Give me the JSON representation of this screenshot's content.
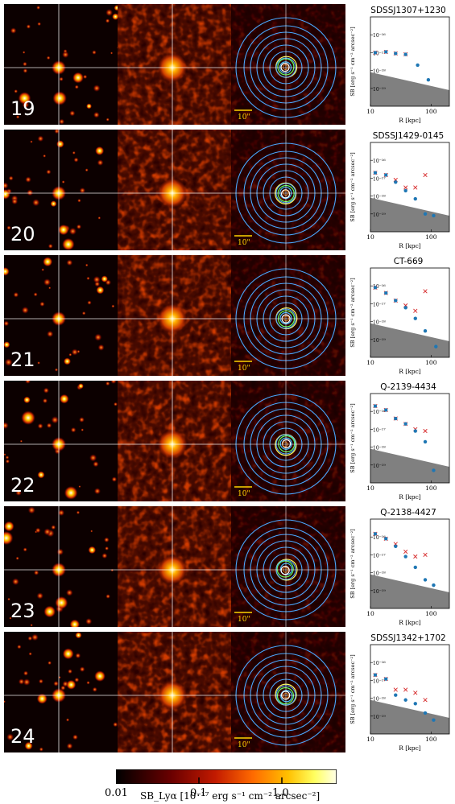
{
  "rows": [
    {
      "number": "19",
      "object": "SDSSJ1307+1230"
    },
    {
      "number": "20",
      "object": "SDSSJ1429-0145"
    },
    {
      "number": "21",
      "object": "CT-669"
    },
    {
      "number": "22",
      "object": "Q-2139-4434"
    },
    {
      "number": "23",
      "object": "Q-2138-4427"
    },
    {
      "number": "24",
      "object": "SDSSJ1342+1702"
    }
  ],
  "scale_bar_label": "10\"",
  "sb_axis": {
    "ylabel": "SB [erg s⁻¹ cm⁻² arcsec⁻²]",
    "xlabel": "R [kpc]",
    "xticks": [
      "10",
      "100"
    ],
    "yticks": [
      "10⁻¹⁶",
      "10⁻¹⁷",
      "10⁻¹⁸",
      "10⁻¹⁹"
    ]
  },
  "colorbar": {
    "ticks": [
      "0.01",
      "0.1",
      "1.0"
    ],
    "label": "SB_Lyα [10⁻¹⁷ erg s⁻¹ cm⁻² arcsec⁻²]"
  },
  "chart_data": [
    {
      "type": "scatter",
      "title": "SDSSJ1307+1230",
      "xlabel": "R [kpc]",
      "ylabel": "SB [erg s⁻¹ cm⁻² arcsec⁻²]",
      "x_scale": "log",
      "y_scale": "log",
      "xlim": [
        10,
        200
      ],
      "ylim": [
        1e-20,
        1e-15
      ],
      "series": [
        {
          "marker": "x",
          "color": "#d62728",
          "x": [
            12,
            18,
            26,
            38
          ],
          "y": [
            1e-17,
            1.1e-17,
            9e-18,
            8e-18
          ]
        },
        {
          "marker": "o",
          "color": "#1f77b4",
          "x": [
            12,
            18,
            26,
            38,
            60,
            90
          ],
          "y": [
            1e-17,
            1.1e-17,
            9e-18,
            8e-18,
            2e-18,
            3e-19
          ]
        }
      ]
    },
    {
      "type": "scatter",
      "title": "SDSSJ1429-0145",
      "xlabel": "R [kpc]",
      "ylabel": "SB [erg s⁻¹ cm⁻² arcsec⁻²]",
      "x_scale": "log",
      "y_scale": "log",
      "xlim": [
        10,
        200
      ],
      "ylim": [
        1e-20,
        1e-15
      ],
      "series": [
        {
          "marker": "x",
          "color": "#d62728",
          "x": [
            12,
            18,
            26,
            38,
            55,
            80
          ],
          "y": [
            2e-17,
            1.5e-17,
            8e-18,
            3e-18,
            3e-18,
            1.5e-17
          ]
        },
        {
          "marker": "o",
          "color": "#1f77b4",
          "x": [
            12,
            18,
            26,
            38,
            55,
            80,
            110
          ],
          "y": [
            2e-17,
            1.5e-17,
            6e-18,
            2e-18,
            7e-19,
            1e-19,
            8e-20
          ]
        }
      ]
    },
    {
      "type": "scatter",
      "title": "CT-669",
      "xlabel": "R [kpc]",
      "ylabel": "SB [erg s⁻¹ cm⁻² arcsec⁻²]",
      "x_scale": "log",
      "y_scale": "log",
      "xlim": [
        10,
        200
      ],
      "ylim": [
        1e-20,
        1e-15
      ],
      "series": [
        {
          "marker": "x",
          "color": "#d62728",
          "x": [
            12,
            18,
            26,
            38,
            55,
            80
          ],
          "y": [
            8e-17,
            4e-17,
            1.5e-17,
            8e-18,
            4e-18,
            5e-17
          ]
        },
        {
          "marker": "o",
          "color": "#1f77b4",
          "x": [
            12,
            18,
            26,
            38,
            55,
            80,
            120
          ],
          "y": [
            8e-17,
            4e-17,
            1.5e-17,
            6e-18,
            1.5e-18,
            3e-19,
            4e-20
          ]
        }
      ]
    },
    {
      "type": "scatter",
      "title": "Q-2139-4434",
      "xlabel": "R [kpc]",
      "ylabel": "SB [erg s⁻¹ cm⁻² arcsec⁻²]",
      "x_scale": "log",
      "y_scale": "log",
      "xlim": [
        10,
        200
      ],
      "ylim": [
        1e-20,
        1e-15
      ],
      "series": [
        {
          "marker": "x",
          "color": "#d62728",
          "x": [
            12,
            18,
            26,
            38,
            55,
            80
          ],
          "y": [
            2e-16,
            1.2e-16,
            4e-17,
            2e-17,
            1e-17,
            8e-18
          ]
        },
        {
          "marker": "o",
          "color": "#1f77b4",
          "x": [
            12,
            18,
            26,
            38,
            55,
            80,
            110
          ],
          "y": [
            2e-16,
            1.2e-16,
            4e-17,
            2e-17,
            8e-18,
            2e-18,
            5e-20
          ]
        }
      ]
    },
    {
      "type": "scatter",
      "title": "Q-2138-4427",
      "xlabel": "R [kpc]",
      "ylabel": "SB [erg s⁻¹ cm⁻² arcsec⁻²]",
      "x_scale": "log",
      "y_scale": "log",
      "xlim": [
        10,
        200
      ],
      "ylim": [
        1e-20,
        1e-15
      ],
      "series": [
        {
          "marker": "x",
          "color": "#d62728",
          "x": [
            12,
            18,
            26,
            38,
            55,
            80
          ],
          "y": [
            1.5e-16,
            8e-17,
            4e-17,
            1.5e-17,
            8e-18,
            1e-17
          ]
        },
        {
          "marker": "o",
          "color": "#1f77b4",
          "x": [
            12,
            18,
            26,
            38,
            55,
            80,
            110
          ],
          "y": [
            1.5e-16,
            8e-17,
            3e-17,
            8e-18,
            2e-18,
            4e-19,
            2e-19
          ]
        }
      ]
    },
    {
      "type": "scatter",
      "title": "SDSSJ1342+1702",
      "xlabel": "R [kpc]",
      "ylabel": "SB [erg s⁻¹ cm⁻² arcsec⁻²]",
      "x_scale": "log",
      "y_scale": "log",
      "xlim": [
        10,
        200
      ],
      "ylim": [
        1e-20,
        1e-15
      ],
      "series": [
        {
          "marker": "x",
          "color": "#d62728",
          "x": [
            12,
            18,
            26,
            38,
            55,
            80
          ],
          "y": [
            2e-17,
            1.2e-17,
            3e-18,
            3e-18,
            2e-18,
            8e-19
          ]
        },
        {
          "marker": "o",
          "color": "#1f77b4",
          "x": [
            12,
            18,
            26,
            38,
            55,
            80,
            110
          ],
          "y": [
            2e-17,
            1.2e-17,
            1.5e-18,
            8e-19,
            5e-19,
            1.5e-19,
            6e-20
          ]
        }
      ]
    }
  ]
}
